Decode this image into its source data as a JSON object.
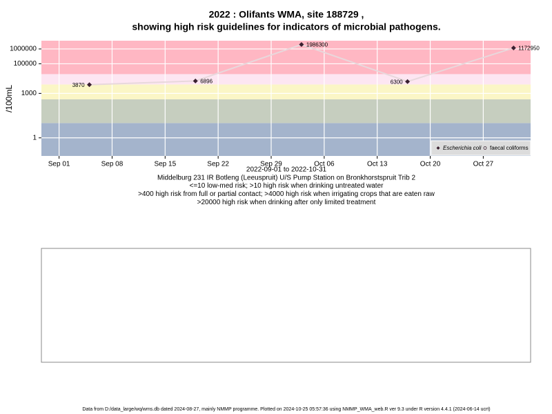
{
  "chart_data": {
    "type": "line",
    "title": [
      "2022 : Olifants WMA, site 188729 ,",
      "showing high risk guidelines for indicators of microbial pathogens."
    ],
    "ylabel": "/100mL",
    "xlabel": [
      "2022-09-01 to 2022-10-31",
      "Middelburg 231 IR Botleng (Leeuspruit) U/S Pump Station on Bronkhorstspruit Trib 2",
      "<=10 low-med risk; >10 high risk when drinking untreated water",
      ">400 high risk from full or partial contact; >4000 high risk when irrigating crops that are eaten raw",
      ">20000 high risk when drinking after only limited treatment"
    ],
    "footer": "Data from D:/data_large/wq/wms.db dated 2024-08-27, mainly NMMP programme. Plotted on 2024-10-25 05:57:36 using NMMP_WMA_web.R ver 9.3 under R version 4.4.1 (2024-06-14 ucrt)",
    "x": [
      "2022-09-05",
      "2022-09-19",
      "2022-10-03",
      "2022-10-17",
      "2022-10-31"
    ],
    "series": [
      {
        "name": "Escherichia coli",
        "color": "#3a2030",
        "values": [
          3870,
          6896,
          1986300,
          6300,
          1172950
        ]
      },
      {
        "name": "faecal coliforms",
        "color": "#3a2030",
        "values": [
          null,
          null,
          null,
          null,
          null
        ]
      }
    ],
    "line_color": "#e8d8dc",
    "log_y": true,
    "ylim": [
      0.06,
      3600000
    ],
    "yticks": [
      1,
      1000,
      100000,
      1000000
    ],
    "xlim": [
      "2022-08-29T16:00",
      "2022-11-02T06:00"
    ],
    "xticks": [
      {
        "value": "2022-09-01",
        "label": "Sep 01"
      },
      {
        "value": "2022-09-08",
        "label": "Sep 08"
      },
      {
        "value": "2022-09-15",
        "label": "Sep 15"
      },
      {
        "value": "2022-09-22",
        "label": "Sep 22"
      },
      {
        "value": "2022-09-29",
        "label": "Sep 29"
      },
      {
        "value": "2022-10-06",
        "label": "Oct 06"
      },
      {
        "value": "2022-10-13",
        "label": "Oct 13"
      },
      {
        "value": "2022-10-20",
        "label": "Oct 20"
      },
      {
        "value": "2022-10-27",
        "label": "Oct 27"
      }
    ],
    "thresholds": [
      10,
      400,
      4000,
      20000
    ],
    "band_colors": [
      "#a4b4cc",
      "#c6cebf",
      "#fbf6c6",
      "#fde6f2",
      "#ffb7c3"
    ],
    "grid": true,
    "legend": "bottomright"
  }
}
